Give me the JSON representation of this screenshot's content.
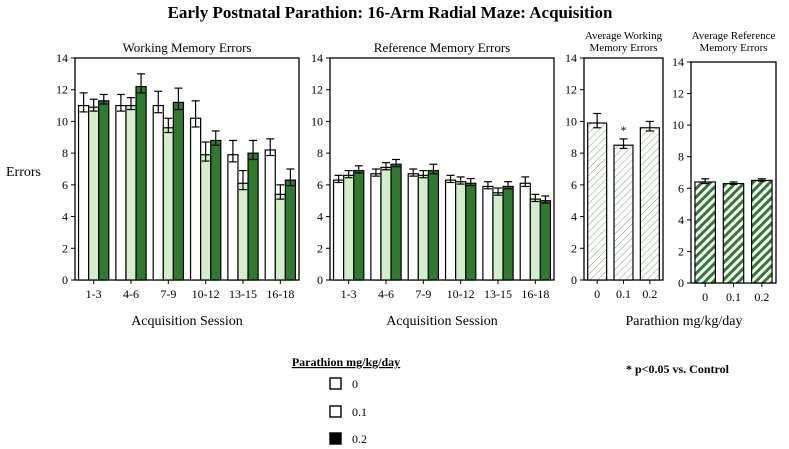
{
  "title": "Early Postnatal Parathion: 16-Arm Radial Maze: Acquisition",
  "y_axis_label": "Errors",
  "significance_note": "* p<0.05 vs. Control",
  "legend": {
    "title": "Parathion mg/kg/day",
    "items": [
      "0",
      "0.1",
      "0.2"
    ]
  },
  "colors": {
    "dose_0": "#ffffff",
    "dose_0_1": "#d3ecc9",
    "dose_0_2": "#2e7a2e",
    "outline": "#000000"
  },
  "chart_data": [
    {
      "type": "bar",
      "title": "Working Memory Errors",
      "xlabel": "Acquisition Session",
      "ylabel": "Errors",
      "ylim": [
        0,
        14
      ],
      "yticks": [
        0,
        2,
        4,
        6,
        8,
        10,
        12,
        14
      ],
      "categories": [
        "1-3",
        "4-6",
        "7-9",
        "10-12",
        "13-15",
        "16-18"
      ],
      "series": [
        {
          "name": "0",
          "values": [
            11.0,
            11.0,
            11.0,
            10.2,
            7.9,
            8.2
          ],
          "errors": [
            0.8,
            0.7,
            0.9,
            1.1,
            0.9,
            0.7
          ]
        },
        {
          "name": "0.1",
          "values": [
            10.9,
            11.0,
            9.6,
            7.9,
            6.1,
            5.4
          ],
          "errors": [
            0.5,
            0.5,
            0.6,
            0.8,
            0.8,
            0.6
          ]
        },
        {
          "name": "0.2",
          "values": [
            11.3,
            12.2,
            11.2,
            8.8,
            8.0,
            6.3
          ],
          "errors": [
            0.4,
            0.8,
            0.9,
            0.6,
            0.8,
            0.7
          ]
        }
      ]
    },
    {
      "type": "bar",
      "title": "Reference Memory Errors",
      "xlabel": "Acquisition Session",
      "ylim": [
        0,
        14
      ],
      "yticks": [
        0,
        2,
        4,
        6,
        8,
        10,
        12,
        14
      ],
      "categories": [
        "1-3",
        "4-6",
        "7-9",
        "10-12",
        "13-15",
        "16-18"
      ],
      "series": [
        {
          "name": "0",
          "values": [
            6.3,
            6.7,
            6.7,
            6.3,
            5.9,
            6.1
          ],
          "errors": [
            0.3,
            0.3,
            0.3,
            0.3,
            0.3,
            0.4
          ]
        },
        {
          "name": "0.1",
          "values": [
            6.6,
            7.1,
            6.6,
            6.2,
            5.5,
            5.1
          ],
          "errors": [
            0.3,
            0.3,
            0.3,
            0.3,
            0.3,
            0.3
          ]
        },
        {
          "name": "0.2",
          "values": [
            6.9,
            7.3,
            6.9,
            6.1,
            5.9,
            5.0
          ],
          "errors": [
            0.3,
            0.3,
            0.4,
            0.3,
            0.3,
            0.3
          ]
        }
      ]
    },
    {
      "type": "bar",
      "title": "Average Working Memory Errors",
      "xlabel": "Parathion mg/kg/day",
      "ylim": [
        0,
        14
      ],
      "yticks": [
        0,
        2,
        4,
        6,
        8,
        10,
        12,
        14
      ],
      "categories": [
        "0",
        "0.1",
        "0.2"
      ],
      "values": [
        9.9,
        8.5,
        9.6
      ],
      "errors": [
        0.6,
        0.4,
        0.4
      ],
      "annotations": [
        "",
        "*",
        ""
      ]
    },
    {
      "type": "bar",
      "title": "Average Reference Memory Errors",
      "xlabel": "",
      "ylim": [
        0,
        14
      ],
      "yticks": [
        0,
        2,
        4,
        6,
        8,
        10,
        12,
        14
      ],
      "categories": [
        "0",
        "0.1",
        "0.2"
      ],
      "values": [
        6.4,
        6.3,
        6.5
      ],
      "errors": [
        0.2,
        0.1,
        0.1
      ],
      "annotations": [
        "",
        "",
        ""
      ]
    }
  ]
}
